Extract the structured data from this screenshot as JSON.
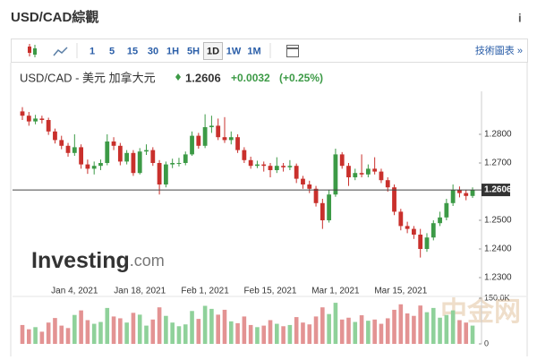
{
  "header": {
    "title": "USD/CAD綜觀",
    "info": "i"
  },
  "toolbar": {
    "intervals": [
      "1",
      "5",
      "15",
      "30",
      "1H",
      "5H",
      "1D",
      "1W",
      "1M"
    ],
    "selected": 6,
    "link": "技術圖表 »"
  },
  "quote": {
    "name": "USD/CAD - 美元 加拿大元",
    "price": "1.2606",
    "change": "+0.0032",
    "change_pct": "(+0.25%)"
  },
  "branding": {
    "logo": "Investing",
    "logo_suffix": ".com",
    "watermark": "中金网"
  },
  "chart_data": {
    "type": "candlestick",
    "categories": [
      null,
      null,
      null,
      null,
      null,
      null,
      null,
      null,
      "Jan 4, 2021",
      null,
      null,
      null,
      null,
      null,
      null,
      null,
      null,
      null,
      "Jan 18, 2021",
      null,
      null,
      null,
      null,
      null,
      null,
      null,
      null,
      null,
      "Feb 1, 2021",
      null,
      null,
      null,
      null,
      null,
      null,
      null,
      null,
      null,
      "Feb 15, 2021",
      null,
      null,
      null,
      null,
      null,
      null,
      null,
      null,
      null,
      "Mar 1, 2021",
      null,
      null,
      null,
      null,
      null,
      null,
      null,
      null,
      null,
      "Mar 15, 2021",
      null,
      null,
      null,
      null,
      null,
      null,
      null,
      null,
      null,
      null,
      null
    ],
    "open": [
      1.288,
      1.2865,
      1.2845,
      1.2855,
      1.285,
      1.281,
      1.278,
      1.276,
      1.2735,
      1.2755,
      1.2695,
      1.268,
      1.269,
      1.27,
      1.2775,
      1.276,
      1.2705,
      1.2735,
      1.2665,
      1.274,
      1.2745,
      1.27,
      1.2625,
      1.2695,
      1.27,
      1.27,
      1.273,
      1.2795,
      1.276,
      1.2825,
      1.283,
      1.279,
      1.278,
      1.279,
      1.2745,
      1.271,
      1.269,
      1.2695,
      1.269,
      1.2675,
      1.269,
      1.2685,
      1.269,
      1.2645,
      1.2625,
      1.261,
      1.256,
      1.25,
      1.259,
      1.273,
      1.269,
      1.265,
      1.2665,
      1.266,
      1.268,
      1.267,
      1.264,
      1.2615,
      1.253,
      1.248,
      1.247,
      1.245,
      1.24,
      1.244,
      1.249,
      1.251,
      1.256,
      1.2605,
      1.2595,
      1.2585
    ],
    "high": [
      1.2895,
      1.2878,
      1.2868,
      1.2865,
      1.2858,
      1.282,
      1.2795,
      1.277,
      1.28,
      1.2765,
      1.2712,
      1.2705,
      1.2712,
      1.28,
      1.279,
      1.277,
      1.2745,
      1.2745,
      1.2752,
      1.2765,
      1.2755,
      1.271,
      1.2705,
      1.2715,
      1.2718,
      1.274,
      1.281,
      1.2805,
      1.287,
      1.2865,
      1.2855,
      1.286,
      1.281,
      1.28,
      1.2755,
      1.2722,
      1.2708,
      1.2705,
      1.27,
      1.272,
      1.27,
      1.271,
      1.2698,
      1.2655,
      1.2638,
      1.262,
      1.2575,
      1.2605,
      1.275,
      1.2738,
      1.27,
      1.268,
      1.273,
      1.2695,
      1.272,
      1.268,
      1.265,
      1.2625,
      1.254,
      1.2495,
      1.248,
      1.247,
      1.2455,
      1.25,
      1.253,
      1.2575,
      1.2625,
      1.2618,
      1.2605,
      1.2615
    ],
    "low": [
      1.285,
      1.283,
      1.2835,
      1.2838,
      1.2798,
      1.2768,
      1.2748,
      1.2722,
      1.2725,
      1.268,
      1.2662,
      1.266,
      1.2675,
      1.2692,
      1.2745,
      1.2692,
      1.2695,
      1.2655,
      1.266,
      1.2728,
      1.269,
      1.259,
      1.2615,
      1.2682,
      1.2688,
      1.2692,
      1.2725,
      1.275,
      1.2752,
      1.2805,
      1.278,
      1.277,
      1.2765,
      1.2735,
      1.27,
      1.268,
      1.2682,
      1.267,
      1.265,
      1.2665,
      1.267,
      1.2675,
      1.263,
      1.261,
      1.2595,
      1.2548,
      1.247,
      1.2492,
      1.2582,
      1.268,
      1.262,
      1.264,
      1.265,
      1.265,
      1.266,
      1.263,
      1.26,
      1.2518,
      1.2465,
      1.2455,
      1.2435,
      1.237,
      1.239,
      1.243,
      1.248,
      1.25,
      1.255,
      1.258,
      1.257,
      1.2578
    ],
    "close": [
      1.2865,
      1.2845,
      1.2855,
      1.285,
      1.281,
      1.278,
      1.276,
      1.2735,
      1.2755,
      1.2695,
      1.268,
      1.269,
      1.27,
      1.2775,
      1.276,
      1.2705,
      1.2735,
      1.2665,
      1.274,
      1.2745,
      1.27,
      1.2625,
      1.2695,
      1.27,
      1.27,
      1.273,
      1.2795,
      1.276,
      1.2825,
      1.283,
      1.279,
      1.278,
      1.279,
      1.2745,
      1.271,
      1.269,
      1.2695,
      1.269,
      1.2675,
      1.269,
      1.2685,
      1.269,
      1.2645,
      1.2625,
      1.261,
      1.256,
      1.25,
      1.259,
      1.273,
      1.269,
      1.265,
      1.2665,
      1.266,
      1.268,
      1.267,
      1.264,
      1.2615,
      1.253,
      1.248,
      1.247,
      1.245,
      1.24,
      1.244,
      1.249,
      1.251,
      1.256,
      1.2605,
      1.2595,
      1.2585,
      1.2606
    ],
    "up_color": "#3c9a46",
    "down_color": "#c9302c",
    "ylim": [
      1.2275,
      1.2925
    ],
    "yticks": [
      {
        "value": 1.23,
        "label": "1.2300"
      },
      {
        "value": 1.24,
        "label": "1.2400"
      },
      {
        "value": 1.25,
        "label": "1.2500"
      },
      {
        "value": 1.27,
        "label": "1.2700"
      },
      {
        "value": 1.28,
        "label": "1.2800"
      }
    ],
    "volume": {
      "values": [
        62000,
        48000,
        55000,
        40000,
        70000,
        85000,
        60000,
        52000,
        95000,
        110000,
        78000,
        66000,
        72000,
        118000,
        90000,
        84000,
        70000,
        102000,
        96000,
        60000,
        80000,
        120000,
        92000,
        70000,
        58000,
        64000,
        108000,
        82000,
        125000,
        115000,
        96000,
        112000,
        74000,
        68000,
        90000,
        62000,
        55000,
        60000,
        78000,
        66000,
        58000,
        62000,
        88000,
        70000,
        64000,
        90000,
        120000,
        98000,
        135000,
        80000,
        86000,
        72000,
        94000,
        76000,
        80000,
        66000,
        84000,
        112000,
        130000,
        100000,
        92000,
        126000,
        104000,
        118000,
        86000,
        95000,
        110000,
        78000,
        70000,
        60000
      ],
      "up_color": "#8fd19a",
      "down_color": "#e39393",
      "ylim": [
        0,
        150000
      ],
      "yticks": [
        0,
        {
          "value": 150000,
          "label": "150.0K"
        }
      ]
    }
  }
}
